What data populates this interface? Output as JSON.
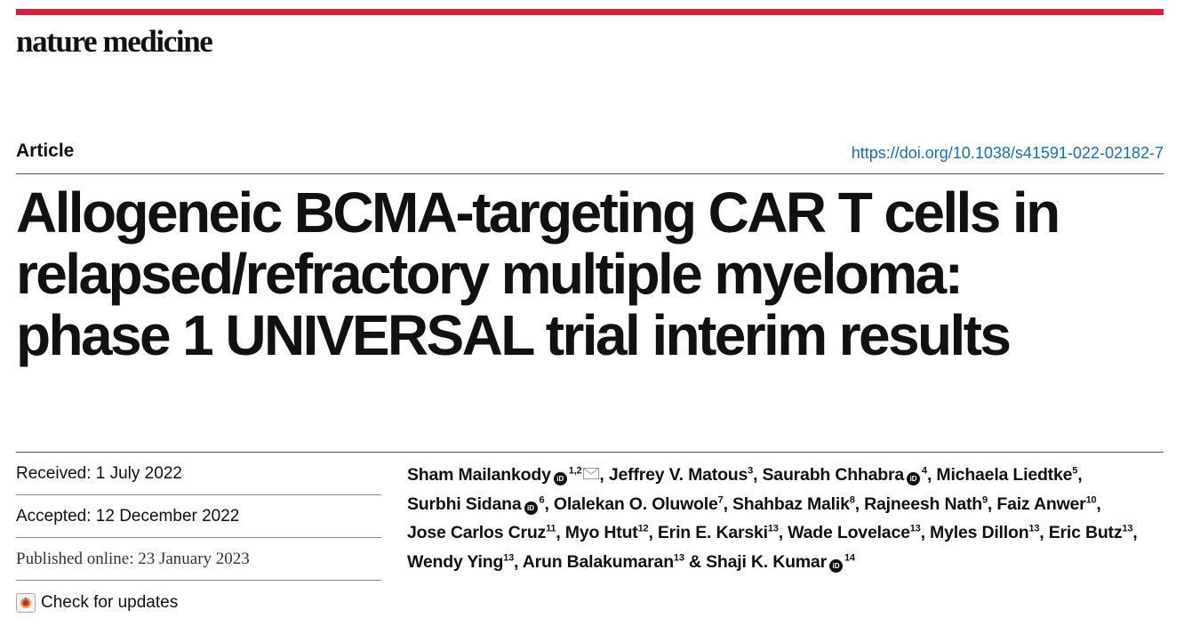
{
  "header": {
    "journal": "nature medicine",
    "article_type": "Article",
    "doi": "https://doi.org/10.1038/s41591-022-02182-7",
    "accent_color": "#d6213e",
    "link_color": "#1b6fa8"
  },
  "title": {
    "line1": "Allogeneic BCMA-targeting CAR T cells in",
    "line2": "relapsed/refractory multiple myeloma:",
    "line3": "phase 1 UNIVERSAL trial interim results"
  },
  "dates": {
    "received": "Received: 1 July 2022",
    "accepted": "Accepted: 12 December 2022",
    "published": "Published online: 23 January 2023",
    "check_updates": "Check for updates"
  },
  "icons": [
    "orcid-icon",
    "envelope-icon",
    "check-for-updates-icon"
  ],
  "authors": [
    {
      "name": "Sham Mailankody",
      "aff": "1,2",
      "orcid": true,
      "corresponding": true,
      "sep": ", "
    },
    {
      "name": "Jeffrey V. Matous",
      "aff": "3",
      "sep": ", "
    },
    {
      "name": "Saurabh Chhabra",
      "aff": "4",
      "orcid": true,
      "sep": ", "
    },
    {
      "name": "Michaela Liedtke",
      "aff": "5",
      "sep": ", "
    },
    {
      "name": "Surbhi Sidana",
      "aff": "6",
      "orcid": true,
      "sep": ", "
    },
    {
      "name": "Olalekan O. Oluwole",
      "aff": "7",
      "sep": ", "
    },
    {
      "name": "Shahbaz Malik",
      "aff": "8",
      "sep": ", "
    },
    {
      "name": "Rajneesh Nath",
      "aff": "9",
      "sep": ", "
    },
    {
      "name": "Faiz Anwer",
      "aff": "10",
      "sep": ", "
    },
    {
      "name": "Jose Carlos Cruz",
      "aff": "11",
      "sep": ", "
    },
    {
      "name": "Myo Htut",
      "aff": "12",
      "sep": ", "
    },
    {
      "name": "Erin E. Karski",
      "aff": "13",
      "sep": ", "
    },
    {
      "name": "Wade Lovelace",
      "aff": "13",
      "sep": ", "
    },
    {
      "name": "Myles Dillon",
      "aff": "13",
      "sep": ", "
    },
    {
      "name": "Eric Butz",
      "aff": "13",
      "sep": ", "
    },
    {
      "name": "Wendy Ying",
      "aff": "13",
      "sep": ", "
    },
    {
      "name": "Arun Balakumaran",
      "aff": "13",
      "sep": " "
    },
    {
      "name": "& Shaji K. Kumar",
      "aff": "14",
      "orcid": true,
      "sep": ""
    }
  ]
}
